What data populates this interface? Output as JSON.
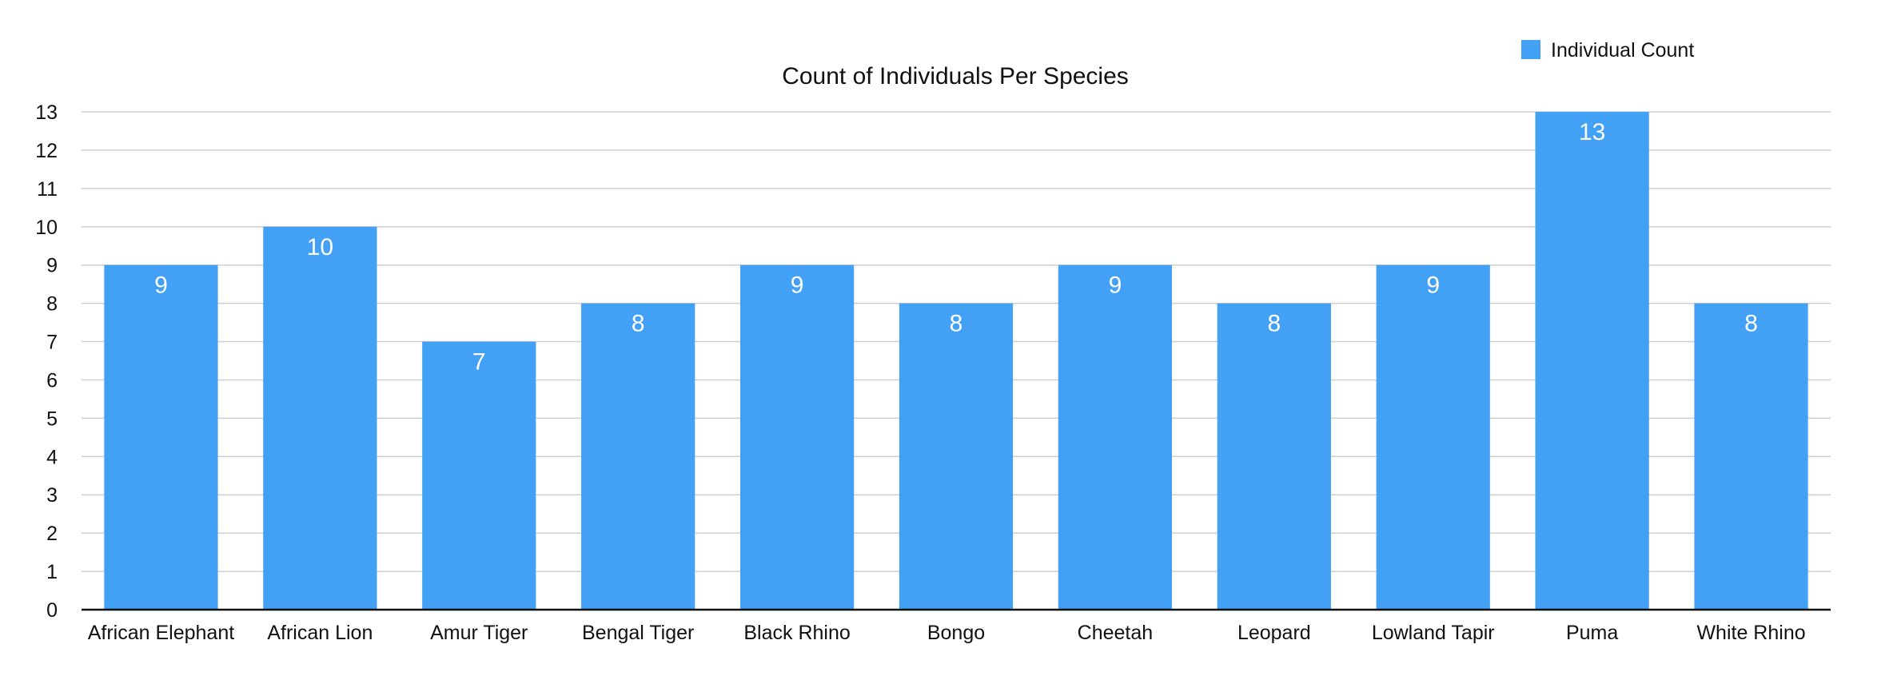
{
  "chart_data": {
    "type": "bar",
    "title": "Count of Individuals Per Species",
    "xlabel": "",
    "ylabel": "",
    "categories": [
      "African Elephant",
      "African Lion",
      "Amur Tiger",
      "Bengal Tiger",
      "Black Rhino",
      "Bongo",
      "Cheetah",
      "Leopard",
      "Lowland Tapir",
      "Puma",
      "White Rhino"
    ],
    "series": [
      {
        "name": "Individual Count",
        "values": [
          9,
          10,
          7,
          8,
          9,
          8,
          9,
          8,
          9,
          13,
          8
        ],
        "color": "#42a0f5"
      }
    ],
    "ylim": [
      0,
      13
    ],
    "yticks": [
      0,
      1,
      2,
      3,
      4,
      5,
      6,
      7,
      8,
      9,
      10,
      11,
      12,
      13
    ],
    "grid": true,
    "legend_position": "top-right",
    "data_labels": true,
    "label_color": "#ffffff"
  }
}
